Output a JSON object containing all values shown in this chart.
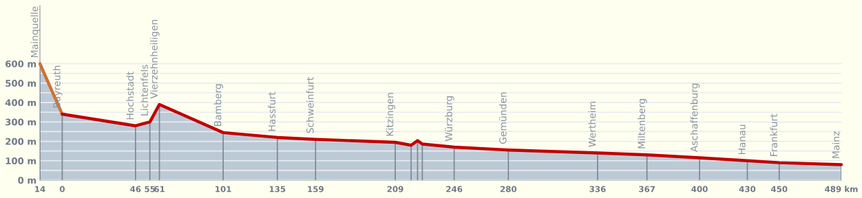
{
  "chart_data": {
    "type": "area",
    "x": [
      -14,
      0,
      46,
      55,
      61,
      101,
      135,
      159,
      209,
      219,
      223,
      226,
      246,
      280,
      336,
      367,
      400,
      430,
      450,
      489
    ],
    "series": [
      {
        "color": "#d07030",
        "values": [
          600,
          340,
          null,
          null,
          null,
          null,
          null,
          null,
          null,
          null,
          null,
          null,
          null,
          null,
          null,
          null,
          null,
          null,
          null,
          null
        ]
      },
      {
        "color": "#c00000",
        "values": [
          null,
          340,
          280,
          300,
          390,
          245,
          220,
          210,
          195,
          180,
          204,
          186,
          170,
          155,
          140,
          130,
          115,
          100,
          90,
          80
        ]
      }
    ],
    "xlim": [
      -14,
      489
    ],
    "ylim": [
      0,
      900
    ],
    "xticks": [
      {
        "value": -14,
        "label": "14"
      },
      0,
      46,
      55,
      61,
      101,
      135,
      159,
      209,
      246,
      280,
      336,
      367,
      400,
      430,
      450,
      {
        "value": 489,
        "label": "489 km"
      }
    ],
    "yticks": [
      {
        "value": 0,
        "label": "0 m"
      },
      {
        "value": 50,
        "label": null
      },
      {
        "value": 100,
        "label": "100 m"
      },
      {
        "value": 150,
        "label": null
      },
      {
        "value": 200,
        "label": "200 m"
      },
      {
        "value": 250,
        "label": null
      },
      {
        "value": 300,
        "label": "300 m"
      },
      {
        "value": 350,
        "label": null
      },
      {
        "value": 400,
        "label": "400 m"
      },
      {
        "value": 450,
        "label": null
      },
      {
        "value": 500,
        "label": "500 m"
      },
      {
        "value": 550,
        "label": null
      },
      {
        "value": 600,
        "label": "600 m"
      }
    ],
    "grid": "y",
    "line_style": "solid",
    "marker": "none",
    "annotations": [
      {
        "text": "Mainquelle",
        "x": -14,
        "y": 600
      },
      {
        "text": "Bayreuth",
        "x": 0,
        "y": 340
      },
      {
        "text": "Hochstadt",
        "x": 46,
        "y": 280
      },
      {
        "text": "Lichtenfels",
        "x": 55,
        "y": 300
      },
      {
        "text": "Vierzehnheiligen",
        "x": 61,
        "y": 390
      },
      {
        "text": "Bamberg",
        "x": 101,
        "y": 245
      },
      {
        "text": "Hassfurt",
        "x": 135,
        "y": 220
      },
      {
        "text": "Schweinfurt",
        "x": 159,
        "y": 210
      },
      {
        "text": "Kitzingen",
        "x": 209,
        "y": 195
      },
      {
        "text": "Würzburg",
        "x": 246,
        "y": 170
      },
      {
        "text": "Gemünden",
        "x": 280,
        "y": 155
      },
      {
        "text": "Wertheim",
        "x": 336,
        "y": 140
      },
      {
        "text": "Miltenberg",
        "x": 367,
        "y": 130
      },
      {
        "text": "Aschaffenburg",
        "x": 400,
        "y": 115
      },
      {
        "text": "Hanau",
        "x": 430,
        "y": 100
      },
      {
        "text": "Frankfurt",
        "x": 450,
        "y": 90
      },
      {
        "text": "Mainz",
        "x": 489,
        "y": 80
      }
    ]
  }
}
